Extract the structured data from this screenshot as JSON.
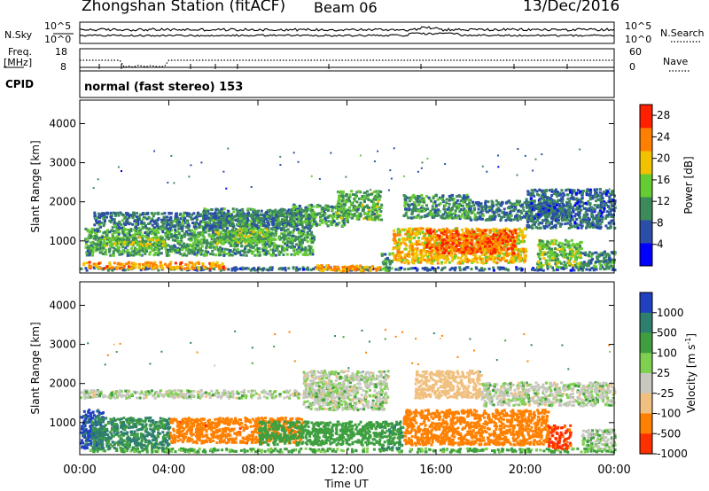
{
  "header": {
    "station": "Zhongshan Station (fitACF)",
    "beam": "Beam 06",
    "date": "13/Dec/2016"
  },
  "chart_data": [
    {
      "type": "line",
      "panel": "N.Sky / N.Search",
      "left_label": "N.Sky",
      "right_label": "N.Search",
      "left_ticks": [
        "10^5",
        "10^0"
      ],
      "right_ticks": [
        "10^5",
        "10^0"
      ],
      "scale": "log"
    },
    {
      "type": "line",
      "panel": "Freq / Nave",
      "left_label_1": "Freq.",
      "left_label_2": "[MHz]",
      "right_label": "Nave",
      "left_ticks": [
        "18",
        "8"
      ],
      "right_ticks": [
        "60",
        "0"
      ],
      "ylim_left": [
        8,
        18
      ],
      "ylim_right": [
        0,
        60
      ]
    },
    {
      "type": "text",
      "panel": "CPID",
      "label": "CPID",
      "value": "normal (fast stereo) 153"
    },
    {
      "type": "heatmap",
      "panel": "power",
      "ylabel": "Slant Range [km]",
      "y_ticks": [
        "1000",
        "2000",
        "3000",
        "4000"
      ],
      "ylim": [
        180,
        4600
      ],
      "colorbar_label": "Power [dB]",
      "colorbar_ticks": [
        "4",
        "8",
        "12",
        "16",
        "20",
        "24",
        "28"
      ],
      "colorbar_range": [
        0,
        30
      ],
      "colors": [
        "#0000ff",
        "#2b4fa8",
        "#3d8a5a",
        "#66cc33",
        "#f2c200",
        "#ff8000",
        "#ff2000"
      ],
      "features": [
        {
          "t0": 0.0,
          "t1": 24.0,
          "r0": 220,
          "r1": 300,
          "value": 8
        },
        {
          "t0": 0.1,
          "t1": 6.5,
          "r0": 260,
          "r1": 430,
          "value": 22
        },
        {
          "t0": 0.2,
          "t1": 10.5,
          "r0": 600,
          "r1": 1300,
          "value": 12
        },
        {
          "t0": 0.6,
          "t1": 10.5,
          "r0": 1300,
          "r1": 1700,
          "value": 9
        },
        {
          "t0": 1.0,
          "t1": 3.8,
          "r0": 850,
          "r1": 1100,
          "value": 15
        },
        {
          "t0": 6.0,
          "t1": 8.5,
          "r0": 900,
          "r1": 1300,
          "value": 14
        },
        {
          "t0": 5.5,
          "t1": 9.5,
          "r0": 1350,
          "r1": 1800,
          "value": 10
        },
        {
          "t0": 9.5,
          "t1": 12.0,
          "r0": 1350,
          "r1": 1900,
          "value": 12
        },
        {
          "t0": 11.5,
          "t1": 13.5,
          "r0": 1500,
          "r1": 2250,
          "value": 13
        },
        {
          "t0": 10.5,
          "t1": 13.5,
          "r0": 200,
          "r1": 350,
          "value": 22
        },
        {
          "t0": 13.5,
          "t1": 14.0,
          "r0": 200,
          "r1": 650,
          "value": 12
        },
        {
          "t0": 14.0,
          "t1": 20.0,
          "r0": 400,
          "r1": 1300,
          "value": 20
        },
        {
          "t0": 15.5,
          "t1": 19.5,
          "r0": 650,
          "r1": 1250,
          "value": 25
        },
        {
          "t0": 14.5,
          "t1": 17.5,
          "r0": 1550,
          "r1": 2150,
          "value": 11
        },
        {
          "t0": 17.5,
          "t1": 22.0,
          "r0": 1500,
          "r1": 2000,
          "value": 9
        },
        {
          "t0": 20.0,
          "t1": 24.0,
          "r0": 1300,
          "r1": 2300,
          "value": 8
        },
        {
          "t0": 20.5,
          "t1": 22.5,
          "r0": 300,
          "r1": 1000,
          "value": 14
        },
        {
          "t0": 22.5,
          "t1": 24.0,
          "r0": 300,
          "r1": 700,
          "value": 10
        }
      ]
    },
    {
      "type": "heatmap",
      "panel": "velocity",
      "ylabel": "Slant Range [km]",
      "y_ticks": [
        "1000",
        "2000",
        "3000",
        "4000"
      ],
      "ylim": [
        180,
        4600
      ],
      "colorbar_label": "Velocity [m s",
      "colorbar_label_sup": "-1",
      "colorbar_label_end": "]",
      "colorbar_ticks": [
        "1000",
        "500",
        "100",
        "25",
        "-25",
        "-100",
        "-500",
        "-1000"
      ],
      "colors": [
        "#2040c0",
        "#2f7f6f",
        "#3f9f3f",
        "#7fd050",
        "#c8c8c0",
        "#f0c080",
        "#ff8000",
        "#ff3000"
      ],
      "features": [
        {
          "t0": 0.0,
          "t1": 24.0,
          "r0": 220,
          "r1": 310,
          "value": 40
        },
        {
          "t0": 0.0,
          "t1": 1.0,
          "r0": 300,
          "r1": 1300,
          "value": 600
        },
        {
          "t0": 0.5,
          "t1": 4.0,
          "r0": 300,
          "r1": 1100,
          "value": 120
        },
        {
          "t0": 4.0,
          "t1": 10.0,
          "r0": 450,
          "r1": 1100,
          "value": -350
        },
        {
          "t0": 0.0,
          "t1": 12.0,
          "r0": 1600,
          "r1": 1800,
          "value": 0
        },
        {
          "t0": 10.0,
          "t1": 13.8,
          "r0": 1300,
          "r1": 2300,
          "value": 0
        },
        {
          "t0": 8.0,
          "t1": 13.5,
          "r0": 400,
          "r1": 1000,
          "value": 60
        },
        {
          "t0": 13.5,
          "t1": 14.5,
          "r0": 300,
          "r1": 1000,
          "value": 80
        },
        {
          "t0": 14.5,
          "t1": 21.0,
          "r0": 400,
          "r1": 1300,
          "value": -250
        },
        {
          "t0": 15.0,
          "t1": 18.0,
          "r0": 1600,
          "r1": 2300,
          "value": -60
        },
        {
          "t0": 18.0,
          "t1": 24.0,
          "r0": 1400,
          "r1": 2000,
          "value": 0
        },
        {
          "t0": 21.0,
          "t1": 22.0,
          "r0": 300,
          "r1": 900,
          "value": -700
        },
        {
          "t0": 22.5,
          "t1": 24.0,
          "r0": 300,
          "r1": 800,
          "value": 10
        }
      ]
    }
  ],
  "x_axis": {
    "tick_labels": [
      "00:00",
      "04:00",
      "08:00",
      "12:00",
      "16:00",
      "20:00",
      "00:00"
    ],
    "tick_hours": [
      0,
      4,
      8,
      12,
      16,
      20,
      24
    ],
    "label": "Time UT"
  }
}
